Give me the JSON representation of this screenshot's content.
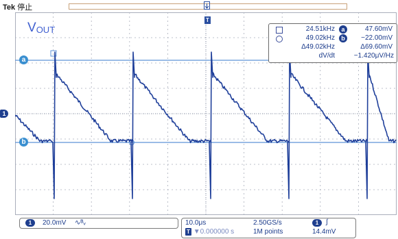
{
  "top": {
    "brand": "Tek",
    "state": "停止"
  },
  "trace_label": {
    "v": "V",
    "sub": "OUT"
  },
  "cursor_readout": {
    "row1": {
      "left_value": "24.51kHz",
      "badge": "a",
      "right_value": "47.60mV"
    },
    "row2": {
      "left_value": "49.02kHz",
      "badge": "b",
      "right_value": "−22.00mV"
    },
    "row3": {
      "left_value": "Δ49.02kHz",
      "right_value": "Δ69.60mV"
    },
    "row4": {
      "label": "dV/dt",
      "value": "−1.420μV/Hz"
    }
  },
  "markers": {
    "cursor_a": "a",
    "cursor_b": "b",
    "ch1": "1",
    "trigger": "T"
  },
  "bottom": {
    "ch1_badge": "1",
    "ch1_scale": "20.0mV",
    "ch1_coupling": "∿ᴮᵥ",
    "timebase": "10.0μs",
    "sample_rate": "2.50GS/s",
    "trig_badge": "1",
    "trig_slope": "∫",
    "position": "▼0.000000 s",
    "record_length": "1M points",
    "trig_level": "14.4mV"
  },
  "colors": {
    "trace": "#1f3f9a",
    "grid": "#9aa0b0",
    "cursor": "#5d93d8",
    "frame": "#c9a27a"
  }
}
